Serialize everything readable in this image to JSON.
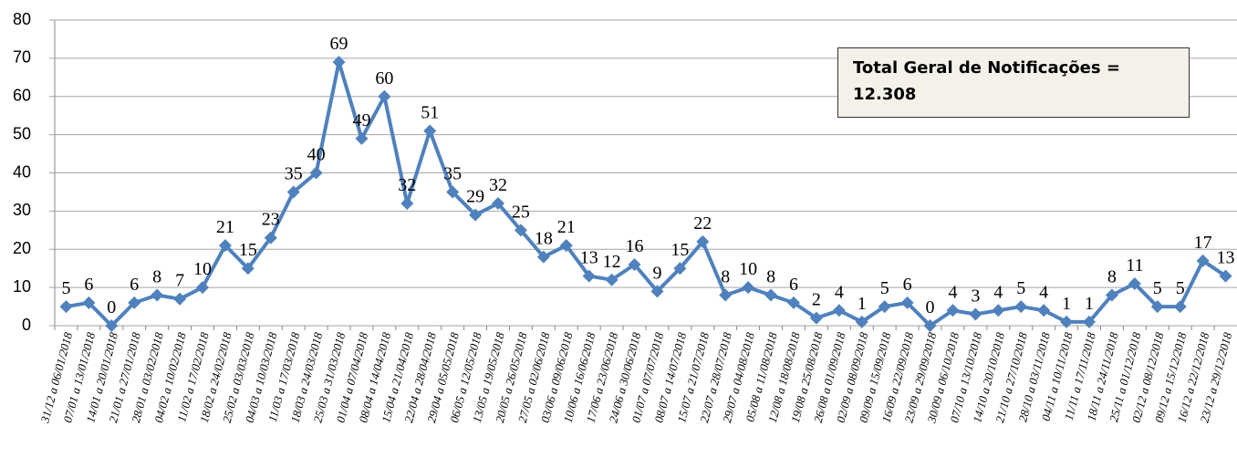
{
  "chart_data": {
    "type": "line",
    "categories": [
      "31/12 a 06/01/2018",
      "07/01 a 13/01/2018",
      "14/01 a 20/01/2018",
      "21/01 a 27/01/2018",
      "28/01 a 03/02/2018",
      "04/02 a 10/02/2018",
      "11/02 a 17/02/2018",
      "18/02 a 24/02/2018",
      "25/02 a 03/03/2018",
      "04/03 a 10/03/2018",
      "11/03 a 17/03/2018",
      "18/03 a 24/03/2018",
      "25/03 a 31/03/2018",
      "01/04 a 07/04/2018",
      "08/04 a 14/04/2018",
      "15/04 a 21/04/2018",
      "22/04 a 28/04/2018",
      "29/04 a 05/05/2018",
      "06/05 a 12/05/2018",
      "13/05 a 19/05/2018",
      "20/05 a 26/05/2018",
      "27/05 a 02/06/2018",
      "03/06 a 09/06/2018",
      "10/06 a 16/06/2018",
      "17/06 a 23/06/2018",
      "24/06 a 30/06/2018",
      "01/07 a 07/07/2018",
      "08/07 a 14/07/2018",
      "15/07 a 21/07/2018",
      "22/07 a 28/07/2018",
      "29/07 a 04/08/2018",
      "05/08 a 11/08/2018",
      "12/08 a 18/08/2018",
      "19/08 a 25/08/2018",
      "26/08 a 01/09/2018",
      "02/09 a 08/09/2018",
      "09/09 a 15/09/2018",
      "16/09 a 22/09/2018",
      "23/09 a 29/09/2018",
      "30/09 a 06/10/2018",
      "07/10 a 13/10/2018",
      "14/10 a 20/10/2018",
      "21/10 a 27/10/2018",
      "28/10 a 03/11/2018",
      "04/11 a 10/11/2018",
      "11/11 a 17/11/2018",
      "18/11 a 24/11/2018",
      "25/11 a 01/12/2018",
      "02/12 a 08/12/2018",
      "09/12 a 15/12/2018",
      "16/12 a 22/12/2018",
      "23/12 a 29/12/2018"
    ],
    "values": [
      5,
      6,
      0,
      6,
      8,
      7,
      10,
      21,
      15,
      23,
      35,
      40,
      69,
      49,
      60,
      32,
      51,
      35,
      29,
      32,
      25,
      18,
      21,
      13,
      12,
      16,
      9,
      15,
      22,
      8,
      10,
      8,
      6,
      2,
      4,
      1,
      5,
      6,
      0,
      4,
      3,
      4,
      5,
      4,
      1,
      1,
      8,
      11,
      5,
      5,
      17,
      13
    ],
    "color": "#4f81bd",
    "ylim": [
      0,
      80
    ],
    "yticks": [
      0,
      10,
      20,
      30,
      40,
      50,
      60,
      70,
      80
    ],
    "grid": true,
    "annotation": "Total Geral de Notificações = 12.308"
  }
}
